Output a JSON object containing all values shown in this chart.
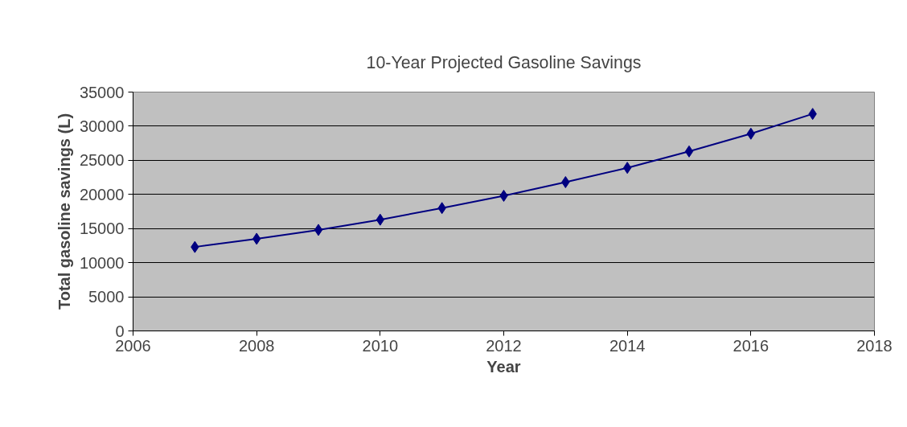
{
  "chart_data": {
    "type": "line",
    "title": "10-Year Projected Gasoline Savings",
    "xlabel": "Year",
    "ylabel": "Total gasoline savings (L)",
    "x": [
      2007,
      2008,
      2009,
      2010,
      2011,
      2012,
      2013,
      2014,
      2015,
      2016,
      2017
    ],
    "series": [
      {
        "color": "#000080",
        "values": [
          12300,
          13500,
          14800,
          16300,
          18000,
          19800,
          21800,
          23900,
          26300,
          28900,
          31800
        ]
      }
    ],
    "xlim": [
      2006,
      2018
    ],
    "xticks": [
      2006,
      2008,
      2010,
      2012,
      2014,
      2016,
      2018
    ],
    "ylim": [
      0,
      35000
    ],
    "yticks": [
      0,
      5000,
      10000,
      15000,
      20000,
      25000,
      30000,
      35000
    ],
    "grid": "y",
    "marker": "diamond",
    "line_style": "solid"
  }
}
